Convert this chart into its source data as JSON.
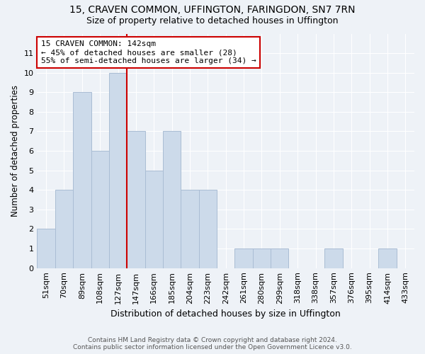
{
  "title1": "15, CRAVEN COMMON, UFFINGTON, FARINGDON, SN7 7RN",
  "title2": "Size of property relative to detached houses in Uffington",
  "xlabel": "Distribution of detached houses by size in Uffington",
  "ylabel": "Number of detached properties",
  "categories": [
    "51sqm",
    "70sqm",
    "89sqm",
    "108sqm",
    "127sqm",
    "147sqm",
    "166sqm",
    "185sqm",
    "204sqm",
    "223sqm",
    "242sqm",
    "261sqm",
    "280sqm",
    "299sqm",
    "318sqm",
    "338sqm",
    "357sqm",
    "376sqm",
    "395sqm",
    "414sqm",
    "433sqm"
  ],
  "values": [
    2,
    4,
    9,
    6,
    10,
    7,
    5,
    7,
    4,
    4,
    0,
    1,
    1,
    1,
    0,
    0,
    1,
    0,
    0,
    1,
    0
  ],
  "bar_color": "#ccdaea",
  "bar_edge_color": "#aabdd4",
  "vline_color": "#cc0000",
  "annotation_line1": "15 CRAVEN COMMON: 142sqm",
  "annotation_line2": "← 45% of detached houses are smaller (28)",
  "annotation_line3": "55% of semi-detached houses are larger (34) →",
  "annotation_box_color": "white",
  "annotation_box_edge": "#cc0000",
  "ylim": [
    0,
    12
  ],
  "yticks": [
    0,
    1,
    2,
    3,
    4,
    5,
    6,
    7,
    8,
    9,
    10,
    11
  ],
  "footer1": "Contains HM Land Registry data © Crown copyright and database right 2024.",
  "footer2": "Contains public sector information licensed under the Open Government Licence v3.0.",
  "background_color": "#eef2f7",
  "plot_bg_color": "#eef2f7",
  "grid_color": "#ffffff",
  "title1_fontsize": 10,
  "title2_fontsize": 9,
  "ylabel_fontsize": 8.5,
  "xlabel_fontsize": 9,
  "tick_fontsize": 8,
  "footer_fontsize": 6.5
}
